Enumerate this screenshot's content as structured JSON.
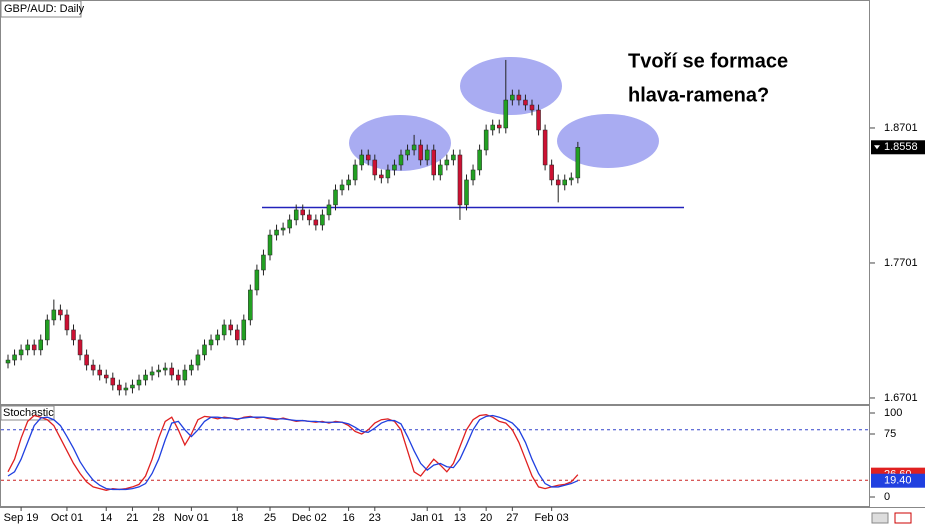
{
  "chart_data": [
    {
      "type": "candlestick",
      "title": "GBP/AUD: Daily",
      "annotation_lines": [
        "Tvoří se formace",
        "hlava-ramena?"
      ],
      "up_color": "#22a022",
      "down_color": "#cc1133",
      "ylim": [
        1.6649,
        1.9649
      ],
      "yticks": [
        1.6701,
        1.7701,
        1.8701
      ],
      "current_price": 1.8558,
      "categories": [
        null,
        null,
        "Sep 19",
        null,
        null,
        null,
        null,
        null,
        null,
        "Oct 01",
        null,
        null,
        null,
        null,
        null,
        "14",
        null,
        null,
        null,
        "21",
        null,
        null,
        null,
        "28",
        null,
        null,
        null,
        null,
        "Nov 01",
        null,
        null,
        null,
        null,
        null,
        null,
        "18",
        null,
        null,
        null,
        null,
        "25",
        null,
        null,
        null,
        null,
        null,
        "Dec 02",
        null,
        null,
        null,
        null,
        null,
        "16",
        null,
        null,
        null,
        "23",
        null,
        null,
        null,
        null,
        null,
        null,
        null,
        "Jan 01",
        null,
        null,
        null,
        null,
        "13",
        null,
        null,
        null,
        "20",
        null,
        null,
        null,
        "27",
        null,
        null,
        null,
        null,
        null,
        "Feb 03",
        null,
        null,
        null,
        null
      ],
      "open": [
        1.696,
        1.6982,
        1.702,
        1.7057,
        1.7094,
        1.7057,
        1.7131,
        1.7279,
        1.7353,
        1.7316,
        1.7205,
        1.7131,
        1.702,
        1.6945,
        1.6908,
        1.6871,
        1.6849,
        1.6797,
        1.676,
        1.6775,
        1.6797,
        1.6834,
        1.6871,
        1.6894,
        1.6908,
        1.6923,
        1.6871,
        1.6834,
        1.6908,
        1.6945,
        1.702,
        1.7094,
        1.7131,
        1.7168,
        1.7242,
        1.7205,
        1.7131,
        1.7279,
        1.7501,
        1.7649,
        1.776,
        1.7908,
        1.7945,
        1.796,
        1.802,
        1.8094,
        1.8057,
        1.802,
        1.7982,
        1.8057,
        1.8131,
        1.8242,
        1.8279,
        1.8316,
        1.8427,
        1.8501,
        1.8464,
        1.8353,
        1.8331,
        1.839,
        1.8427,
        1.8501,
        1.8538,
        1.8575,
        1.8464,
        1.8538,
        1.8353,
        1.8427,
        1.8464,
        1.8501,
        1.8131,
        1.8316,
        1.839,
        1.8538,
        1.8686,
        1.8723,
        1.8701,
        1.8908,
        1.8945,
        1.8908,
        1.8871,
        1.8834,
        1.8686,
        1.8427,
        1.8316,
        1.8279,
        1.8316,
        1.8331
      ],
      "high": [
        1.7022,
        1.706,
        1.7097,
        1.7134,
        1.7134,
        1.7171,
        1.7319,
        1.743,
        1.7393,
        1.7356,
        1.7245,
        1.7171,
        1.706,
        1.6985,
        1.6948,
        1.6911,
        1.6889,
        1.6837,
        1.6815,
        1.6837,
        1.6874,
        1.6911,
        1.6934,
        1.6948,
        1.6963,
        1.6963,
        1.6911,
        1.6948,
        1.6985,
        1.706,
        1.7134,
        1.7171,
        1.7208,
        1.7282,
        1.7282,
        1.7245,
        1.7319,
        1.7541,
        1.7689,
        1.78,
        1.7948,
        1.7985,
        1.8,
        1.806,
        1.8134,
        1.8134,
        1.8097,
        1.806,
        1.8097,
        1.8171,
        1.8282,
        1.8319,
        1.8356,
        1.8467,
        1.8541,
        1.8541,
        1.8504,
        1.8393,
        1.843,
        1.8467,
        1.8541,
        1.8578,
        1.865,
        1.8615,
        1.8578,
        1.8578,
        1.8467,
        1.8504,
        1.8541,
        1.8541,
        1.8356,
        1.843,
        1.8578,
        1.8726,
        1.8763,
        1.8763,
        1.9205,
        1.8985,
        1.8985,
        1.8948,
        1.8911,
        1.8874,
        1.8726,
        1.8467,
        1.8356,
        1.8356,
        1.8371,
        1.8598
      ],
      "low": [
        1.692,
        1.6942,
        1.698,
        1.7017,
        1.7017,
        1.7017,
        1.7091,
        1.7239,
        1.7276,
        1.7165,
        1.7091,
        1.698,
        1.6905,
        1.6868,
        1.6831,
        1.6809,
        1.6757,
        1.672,
        1.672,
        1.6735,
        1.6757,
        1.6794,
        1.6831,
        1.6854,
        1.6868,
        1.6831,
        1.6794,
        1.6794,
        1.6868,
        1.6905,
        1.698,
        1.7054,
        1.7091,
        1.7128,
        1.7165,
        1.7091,
        1.7091,
        1.7239,
        1.7461,
        1.7609,
        1.772,
        1.7868,
        1.7905,
        1.792,
        1.798,
        1.8017,
        1.798,
        1.7942,
        1.7942,
        1.8017,
        1.8091,
        1.8202,
        1.8239,
        1.8276,
        1.8387,
        1.8424,
        1.8313,
        1.8291,
        1.8291,
        1.835,
        1.8387,
        1.8461,
        1.8498,
        1.8424,
        1.8424,
        1.8313,
        1.8313,
        1.8387,
        1.8424,
        1.802,
        1.8091,
        1.8276,
        1.835,
        1.8498,
        1.8646,
        1.8661,
        1.8661,
        1.8868,
        1.8868,
        1.8831,
        1.8794,
        1.8646,
        1.8387,
        1.8276,
        1.815,
        1.8239,
        1.8276,
        1.8291
      ],
      "close": [
        1.6982,
        1.702,
        1.7057,
        1.7094,
        1.7057,
        1.7131,
        1.7279,
        1.7353,
        1.7316,
        1.7205,
        1.7131,
        1.702,
        1.6945,
        1.6908,
        1.6871,
        1.6849,
        1.6797,
        1.676,
        1.6775,
        1.6797,
        1.6834,
        1.6871,
        1.6894,
        1.6908,
        1.6923,
        1.6871,
        1.6834,
        1.6908,
        1.6945,
        1.702,
        1.7094,
        1.7131,
        1.7168,
        1.7242,
        1.7205,
        1.7131,
        1.7279,
        1.7501,
        1.7649,
        1.776,
        1.7908,
        1.7945,
        1.796,
        1.802,
        1.8094,
        1.8057,
        1.802,
        1.7982,
        1.8057,
        1.8131,
        1.8242,
        1.8279,
        1.8316,
        1.8427,
        1.8501,
        1.8464,
        1.8353,
        1.8331,
        1.839,
        1.8427,
        1.8501,
        1.8538,
        1.8575,
        1.8464,
        1.8538,
        1.8353,
        1.8427,
        1.8464,
        1.8501,
        1.8131,
        1.8316,
        1.839,
        1.8538,
        1.8686,
        1.8723,
        1.8701,
        1.8908,
        1.8945,
        1.8908,
        1.8871,
        1.8834,
        1.8686,
        1.8427,
        1.8316,
        1.8279,
        1.8316,
        1.8331,
        1.8558
      ]
    },
    {
      "type": "line",
      "title": "Stochastic",
      "ylim": [
        0,
        100
      ],
      "yticks": [
        100,
        75,
        0
      ],
      "levels": [
        {
          "value": 80,
          "color": "#3344cc"
        },
        {
          "value": 20,
          "color": "#cc2222"
        }
      ],
      "series": [
        {
          "color": "#e02020",
          "last_label": "26.60",
          "values": [
            30,
            45,
            70,
            90,
            97,
            95,
            92,
            85,
            70,
            55,
            40,
            28,
            18,
            12,
            10,
            8,
            10,
            9,
            10,
            12,
            15,
            25,
            45,
            70,
            90,
            95,
            80,
            62,
            75,
            92,
            96,
            95,
            93,
            95,
            94,
            92,
            95,
            96,
            94,
            95,
            93,
            92,
            94,
            92,
            90,
            91,
            90,
            89,
            90,
            88,
            90,
            89,
            85,
            78,
            75,
            80,
            88,
            92,
            93,
            90,
            80,
            55,
            30,
            25,
            35,
            45,
            38,
            30,
            40,
            60,
            80,
            92,
            97,
            98,
            95,
            90,
            88,
            80,
            65,
            45,
            25,
            12,
            10,
            12,
            14,
            15,
            18,
            26.6
          ]
        },
        {
          "color": "#2040e0",
          "last_label": "19.40",
          "values": [
            25,
            30,
            45,
            65,
            85,
            94,
            95,
            92,
            85,
            72,
            58,
            42,
            30,
            20,
            14,
            10,
            9,
            9,
            9,
            10,
            12,
            16,
            28,
            45,
            68,
            88,
            90,
            80,
            72,
            80,
            90,
            95,
            95,
            94,
            94,
            93,
            94,
            95,
            95,
            95,
            94,
            93,
            93,
            92,
            91,
            91,
            90,
            90,
            89,
            89,
            89,
            89,
            87,
            83,
            78,
            77,
            82,
            88,
            91,
            91,
            87,
            72,
            55,
            40,
            32,
            38,
            40,
            36,
            35,
            45,
            62,
            80,
            92,
            96,
            97,
            95,
            92,
            88,
            80,
            65,
            45,
            28,
            16,
            12,
            12,
            14,
            16,
            19.4
          ]
        }
      ]
    }
  ]
}
